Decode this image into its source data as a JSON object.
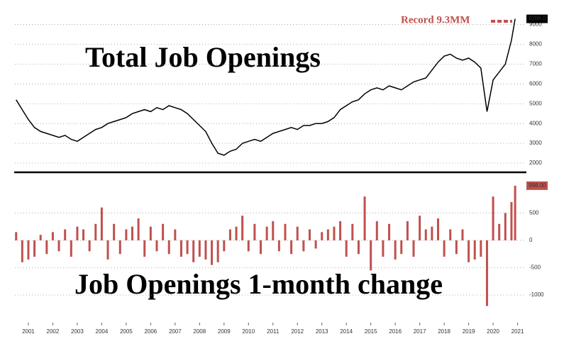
{
  "chart_data": [
    {
      "type": "line",
      "title": "Total Job Openings",
      "color": "#000000",
      "grid": true,
      "xlim": [
        2000.95,
        2021.6
      ],
      "ylim": [
        1500,
        9700
      ],
      "yticks": [
        2000,
        3000,
        4000,
        5000,
        6000,
        7000,
        8000,
        9000
      ],
      "annotations": [
        {
          "text": "Record 9.3MM",
          "color": "#c0504d"
        },
        {
          "text": "9286.0"
        }
      ],
      "x": [
        2001.0,
        2001.25,
        2001.5,
        2001.75,
        2002.0,
        2002.25,
        2002.5,
        2002.75,
        2003.0,
        2003.25,
        2003.5,
        2003.75,
        2004.0,
        2004.25,
        2004.5,
        2004.75,
        2005.0,
        2005.25,
        2005.5,
        2005.75,
        2006.0,
        2006.25,
        2006.5,
        2006.75,
        2007.0,
        2007.25,
        2007.5,
        2007.75,
        2008.0,
        2008.25,
        2008.5,
        2008.75,
        2009.0,
        2009.25,
        2009.5,
        2009.75,
        2010.0,
        2010.25,
        2010.5,
        2010.75,
        2011.0,
        2011.25,
        2011.5,
        2011.75,
        2012.0,
        2012.25,
        2012.5,
        2012.75,
        2013.0,
        2013.25,
        2013.5,
        2013.75,
        2014.0,
        2014.25,
        2014.5,
        2014.75,
        2015.0,
        2015.25,
        2015.5,
        2015.75,
        2016.0,
        2016.25,
        2016.5,
        2016.75,
        2017.0,
        2017.25,
        2017.5,
        2017.75,
        2018.0,
        2018.25,
        2018.5,
        2018.75,
        2019.0,
        2019.25,
        2019.5,
        2019.75,
        2020.0,
        2020.25,
        2020.5,
        2020.75,
        2021.0,
        2021.25,
        2021.4
      ],
      "values": [
        5200,
        4700,
        4200,
        3800,
        3600,
        3500,
        3400,
        3300,
        3400,
        3200,
        3100,
        3300,
        3500,
        3700,
        3800,
        4000,
        4100,
        4200,
        4300,
        4500,
        4600,
        4700,
        4600,
        4800,
        4700,
        4900,
        4800,
        4700,
        4500,
        4200,
        3900,
        3600,
        3000,
        2500,
        2400,
        2600,
        2700,
        3000,
        3100,
        3200,
        3100,
        3300,
        3500,
        3600,
        3700,
        3800,
        3700,
        3900,
        3900,
        4000,
        4000,
        4100,
        4300,
        4700,
        4900,
        5100,
        5200,
        5500,
        5700,
        5800,
        5700,
        5900,
        5800,
        5700,
        5900,
        6100,
        6200,
        6300,
        6700,
        7100,
        7400,
        7500,
        7300,
        7200,
        7300,
        7100,
        6800,
        4600,
        6200,
        6600,
        7000,
        8200,
        9286
      ]
    },
    {
      "type": "bar",
      "title": "Job Openings 1-month change",
      "color": "#c0504d",
      "grid": true,
      "xlim": [
        2000.95,
        2021.6
      ],
      "ylim": [
        -1400,
        1100
      ],
      "yticks": [
        -1000,
        -500,
        0,
        500
      ],
      "xticks": [
        {
          "value": 2001.5,
          "label": "2001"
        },
        {
          "value": 2002.5,
          "label": "2002"
        },
        {
          "value": 2003.5,
          "label": "2003"
        },
        {
          "value": 2004.5,
          "label": "2004"
        },
        {
          "value": 2005.5,
          "label": "2005"
        },
        {
          "value": 2006.5,
          "label": "2006"
        },
        {
          "value": 2007.5,
          "label": "2007"
        },
        {
          "value": 2008.5,
          "label": "2008"
        },
        {
          "value": 2009.5,
          "label": "2009"
        },
        {
          "value": 2010.5,
          "label": "2010"
        },
        {
          "value": 2011.5,
          "label": "2011"
        },
        {
          "value": 2012.5,
          "label": "2012"
        },
        {
          "value": 2013.5,
          "label": "2013"
        },
        {
          "value": 2014.5,
          "label": "2014"
        },
        {
          "value": 2015.5,
          "label": "2015"
        },
        {
          "value": 2016.5,
          "label": "2016"
        },
        {
          "value": 2017.5,
          "label": "2017"
        },
        {
          "value": 2018.5,
          "label": "2018"
        },
        {
          "value": 2019.5,
          "label": "2019"
        },
        {
          "value": 2020.5,
          "label": "2020"
        },
        {
          "value": 2021.5,
          "label": "2021"
        }
      ],
      "annotations": [
        {
          "text": "998.00"
        }
      ],
      "x": [
        2001.0,
        2001.25,
        2001.5,
        2001.75,
        2002.0,
        2002.25,
        2002.5,
        2002.75,
        2003.0,
        2003.25,
        2003.5,
        2003.75,
        2004.0,
        2004.25,
        2004.5,
        2004.75,
        2005.0,
        2005.25,
        2005.5,
        2005.75,
        2006.0,
        2006.25,
        2006.5,
        2006.75,
        2007.0,
        2007.25,
        2007.5,
        2007.75,
        2008.0,
        2008.25,
        2008.5,
        2008.75,
        2009.0,
        2009.25,
        2009.5,
        2009.75,
        2010.0,
        2010.25,
        2010.5,
        2010.75,
        2011.0,
        2011.25,
        2011.5,
        2011.75,
        2012.0,
        2012.25,
        2012.5,
        2012.75,
        2013.0,
        2013.25,
        2013.5,
        2013.75,
        2014.0,
        2014.25,
        2014.5,
        2014.75,
        2015.0,
        2015.25,
        2015.5,
        2015.75,
        2016.0,
        2016.25,
        2016.5,
        2016.75,
        2017.0,
        2017.25,
        2017.5,
        2017.75,
        2018.0,
        2018.25,
        2018.5,
        2018.75,
        2019.0,
        2019.25,
        2019.5,
        2019.75,
        2020.0,
        2020.25,
        2020.5,
        2020.75,
        2021.0,
        2021.25,
        2021.4
      ],
      "values": [
        150,
        -400,
        -350,
        -300,
        100,
        -250,
        150,
        -200,
        200,
        -300,
        250,
        200,
        -200,
        300,
        600,
        -350,
        300,
        -250,
        200,
        250,
        400,
        -300,
        250,
        -200,
        300,
        -250,
        200,
        -300,
        -250,
        -400,
        -300,
        -350,
        -450,
        -400,
        -200,
        200,
        250,
        450,
        -200,
        300,
        -250,
        250,
        350,
        -200,
        300,
        -250,
        250,
        -200,
        200,
        -150,
        150,
        200,
        250,
        350,
        -300,
        300,
        -250,
        800,
        -550,
        350,
        -300,
        300,
        -350,
        -250,
        350,
        -300,
        450,
        200,
        250,
        400,
        -300,
        200,
        -250,
        200,
        -400,
        -350,
        -300,
        -1200,
        800,
        300,
        500,
        700,
        998
      ]
    }
  ]
}
